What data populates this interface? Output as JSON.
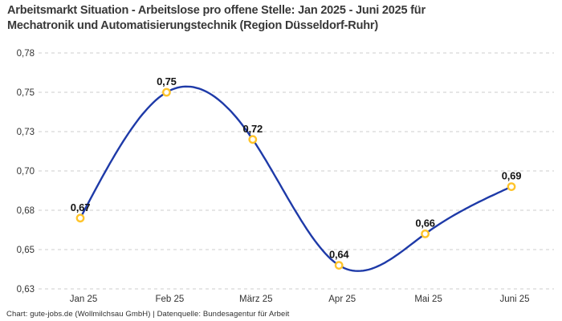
{
  "title": {
    "line1": "Arbeitsmarkt Situation - Arbeitslose pro offene Stelle: Jan 2025 - Juni 2025 für",
    "line2": "Mechatronik und Automatisierungstechnik (Region Düsseldorf-Ruhr)"
  },
  "footer": "Chart: gute-jobs.de (Wollmilchsau GmbH) | Datenquelle: Bundesagentur für Arbeit",
  "chart_data": {
    "type": "line",
    "title": "Arbeitsmarkt Situation - Arbeitslose pro offene Stelle: Jan 2025 - Juni 2025 für Mechatronik und Automatisierungstechnik (Region Düsseldorf-Ruhr)",
    "categories": [
      "Jan 25",
      "Feb 25",
      "März 25",
      "Apr 25",
      "Mai 25",
      "Juni 25"
    ],
    "values": [
      0.67,
      0.75,
      0.72,
      0.64,
      0.66,
      0.69
    ],
    "value_labels": [
      "0,67",
      "0,75",
      "0,72",
      "0,64",
      "0,66",
      "0,69"
    ],
    "xlabel": "",
    "ylabel": "",
    "ylim": [
      0.625,
      0.775
    ],
    "y_ticks": [
      0.775,
      0.75,
      0.725,
      0.7,
      0.675,
      0.65,
      0.625
    ],
    "y_tick_labels": [
      "0,78",
      "0,75",
      "0,73",
      "0,70",
      "0,68",
      "0,65",
      "0,63"
    ],
    "grid": "horizontal-dashed",
    "legend": "none",
    "curve": "natural-spline",
    "colors": {
      "line": "#1e3aa8",
      "marker_ring": "#ffc42a",
      "marker_fill": "#ffffff",
      "grid": "#cccccc",
      "data_label": "#141414",
      "tick_label": "#333333"
    }
  }
}
